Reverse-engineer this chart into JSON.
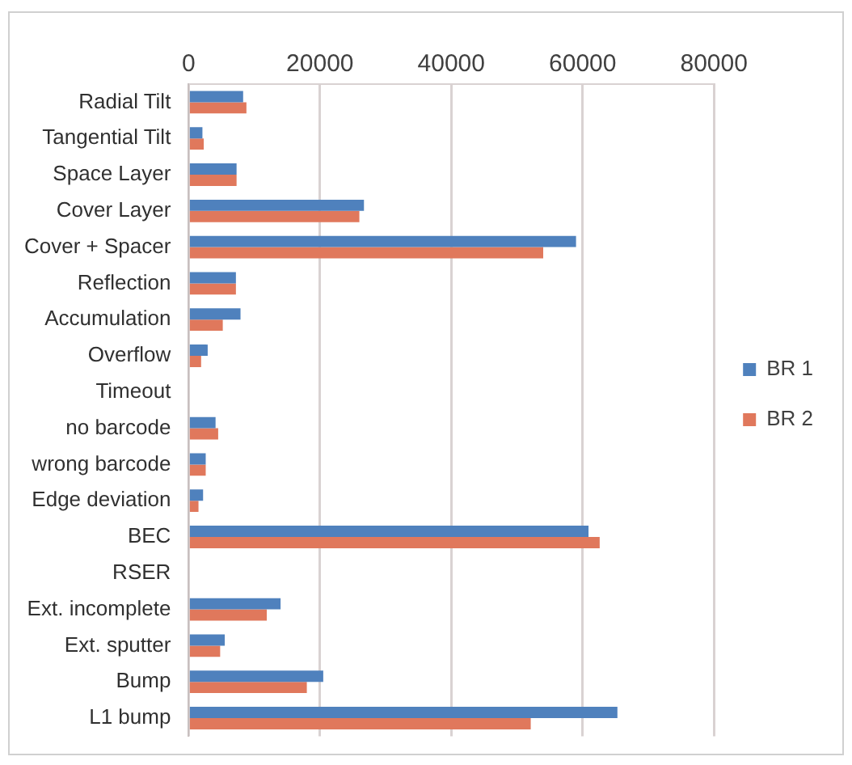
{
  "chart_data": {
    "type": "bar",
    "orientation": "horizontal",
    "categories": [
      "Radial Tilt",
      "Tangential Tilt",
      "Space Layer",
      "Cover Layer",
      "Cover + Spacer",
      "Reflection",
      "Accumulation",
      "Overflow",
      "Timeout",
      "no barcode",
      "wrong barcode",
      "Edge deviation",
      "BEC",
      "RSER",
      "Ext. incomplete",
      "Ext. sputter",
      "Bump",
      "L1 bump"
    ],
    "series": [
      {
        "name": "BR 1",
        "color": "#4f81bd",
        "values": [
          8300,
          2100,
          7300,
          26700,
          59000,
          7200,
          7900,
          2900,
          0,
          4100,
          2600,
          2200,
          60900,
          0,
          14000,
          5500,
          20500,
          65300
        ]
      },
      {
        "name": "BR 2",
        "color": "#e0785c",
        "values": [
          8800,
          2300,
          7300,
          26000,
          54000,
          7200,
          5200,
          1900,
          0,
          4500,
          2600,
          1500,
          62600,
          0,
          11900,
          4800,
          18000,
          52100
        ]
      }
    ],
    "xlim": [
      0,
      80000
    ],
    "xticks": [
      0,
      20000,
      40000,
      60000,
      80000
    ],
    "grid": "x",
    "legend": "right"
  }
}
